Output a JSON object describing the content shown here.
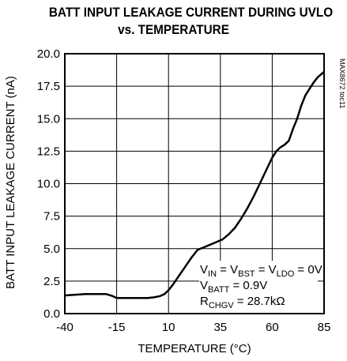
{
  "chart_data": {
    "type": "line",
    "title": "BATT INPUT LEAKAGE CURRENT DURING UVLO",
    "subtitle": "vs. TEMPERATURE",
    "xlabel": "TEMPERATURE (°C)",
    "ylabel": "BATT INPUT LEAKAGE CURRENT (nA)",
    "xlim": [
      -40,
      85
    ],
    "ylim": [
      0,
      20
    ],
    "x_ticks": [
      "-40",
      "-15",
      "10",
      "35",
      "60",
      "85"
    ],
    "y_ticks": [
      "0.0",
      "2.5",
      "5.0",
      "7.5",
      "10.0",
      "12.5",
      "15.0",
      "17.5",
      "20.0"
    ],
    "grid": true,
    "part_code": "MAX8672 toc11",
    "annotation": {
      "line1": {
        "a": "V",
        "a_sub": "IN",
        "b": " = V",
        "b_sub": "BST",
        "c": " = V",
        "c_sub": "LDO",
        "d": " = 0V"
      },
      "line2": {
        "a": "V",
        "a_sub": "BATT",
        "b": " = 0.9V"
      },
      "line3": {
        "a": "R",
        "a_sub": "CHGV",
        "b": " = 28.7kΩ"
      }
    },
    "series": [
      {
        "x": [
          -40,
          -35,
          -30,
          -25,
          -20,
          -17,
          -15,
          -10,
          -5,
          0,
          3,
          6,
          8,
          10,
          12,
          15,
          18,
          21,
          24,
          27,
          30,
          33,
          36,
          39,
          42,
          45,
          48,
          51,
          54,
          57,
          60,
          62,
          64,
          66,
          68,
          70,
          72,
          74,
          76,
          78,
          80,
          82,
          85
        ],
        "y": [
          1.4,
          1.45,
          1.5,
          1.5,
          1.5,
          1.35,
          1.2,
          1.2,
          1.2,
          1.2,
          1.25,
          1.35,
          1.5,
          1.8,
          2.2,
          2.9,
          3.6,
          4.3,
          4.9,
          5.1,
          5.3,
          5.5,
          5.7,
          6.1,
          6.6,
          7.3,
          8.1,
          9.0,
          10.0,
          11.0,
          12.0,
          12.5,
          12.8,
          13.0,
          13.3,
          14.2,
          15.0,
          16.0,
          16.8,
          17.3,
          17.8,
          18.2,
          18.6
        ]
      }
    ]
  }
}
